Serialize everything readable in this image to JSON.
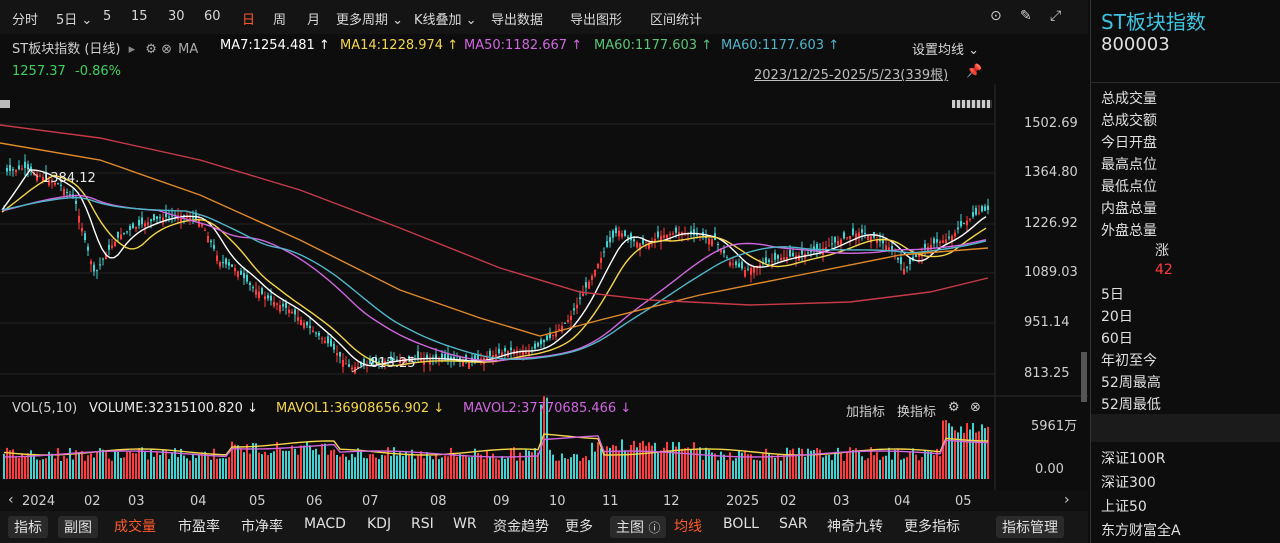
{
  "toolbar": {
    "items": [
      "分时",
      "5日 ⌄",
      "5",
      "15",
      "30",
      "60",
      "日",
      "周",
      "月",
      "更多周期 ⌄",
      "K线叠加 ⌄",
      "导出数据",
      "导出图形",
      "区间统计"
    ],
    "active": "日"
  },
  "legend": {
    "name": "ST板块指数 (日线)",
    "ma_label": "MA",
    "ma7": "MA7:1254.481 ↑",
    "ma14": "MA14:1228.974 ↑",
    "ma50": "MA50:1182.667 ↑",
    "ma60a": "MA60:1177.603 ↑",
    "ma60b": "MA60:1177.603 ↑",
    "price": "1257.37",
    "change": "-0.86%",
    "set_ma": "设置均线 ⌄",
    "range": "2023/12/25-2025/5/23(339根)"
  },
  "colors": {
    "ma7": "#ffffff",
    "ma14": "#f5d64a",
    "ma50": "#d066e0",
    "ma60a": "#59c57a",
    "ma60b": "#4fb6c9",
    "up": "#ff3b3b",
    "down": "#3fd4d4",
    "long1": "#e08a28",
    "long2": "#c83a4a"
  },
  "price_axis": [
    "1502.69",
    "1364.80",
    "1226.92",
    "1089.03",
    "951.14",
    "813.25"
  ],
  "annotations": {
    "high": "1384.12",
    "low": "813.25"
  },
  "volume": {
    "label": "VOL(5,10)",
    "volume": "VOLUME:32315100.820 ↓",
    "mavol1": "MAVOL1:36908656.902 ↓",
    "mavol2": "MAVOL2:37770685.466 ↓",
    "add_indicator": "加指标",
    "switch_indicator": "换指标",
    "axis_top": "5961万",
    "axis_bottom": "0.00"
  },
  "months": [
    {
      "label": "2024",
      "x": 22
    },
    {
      "label": "02",
      "x": 84
    },
    {
      "label": "03",
      "x": 128
    },
    {
      "label": "04",
      "x": 190
    },
    {
      "label": "05",
      "x": 249
    },
    {
      "label": "06",
      "x": 306
    },
    {
      "label": "07",
      "x": 362
    },
    {
      "label": "08",
      "x": 430
    },
    {
      "label": "09",
      "x": 493
    },
    {
      "label": "10",
      "x": 549
    },
    {
      "label": "11",
      "x": 602
    },
    {
      "label": "12",
      "x": 663
    },
    {
      "label": "2025",
      "x": 726
    },
    {
      "label": "02",
      "x": 780
    },
    {
      "label": "03",
      "x": 833
    },
    {
      "label": "04",
      "x": 894
    },
    {
      "label": "05",
      "x": 955
    }
  ],
  "bottom_tabs": {
    "left": [
      "指标",
      "副图"
    ],
    "items1": [
      "成交量",
      "市盈率",
      "市净率",
      "MACD",
      "KDJ",
      "RSI",
      "WR",
      "资金趋势",
      "更多"
    ],
    "main_btn": "主图",
    "items2": [
      "均线",
      "BOLL",
      "SAR",
      "神奇九转",
      "更多指标"
    ],
    "manage": "指标管理"
  },
  "right_panel": {
    "title": "ST板块指数",
    "code": "800003",
    "rows1": [
      "总成交量",
      "总成交额",
      "今日开盘",
      "最高点位",
      "最低点位",
      "内盘总量",
      "外盘总量"
    ],
    "rise_label": "涨",
    "rise_value": "42",
    "rows2": [
      "5日",
      "20日",
      "60日",
      "年初至今",
      "52周最高",
      "52周最低"
    ],
    "indexes": [
      "深证100R",
      "深证300",
      "上证50",
      "东方财富全A"
    ]
  }
}
